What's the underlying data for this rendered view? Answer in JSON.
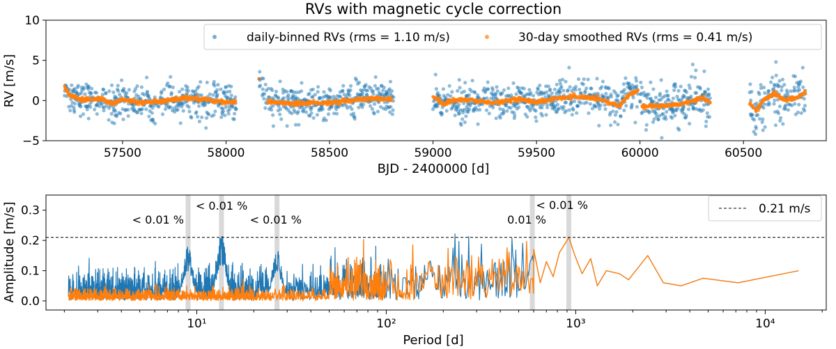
{
  "chart_data": [
    {
      "type": "scatter",
      "title": "RVs with magnetic cycle correction",
      "xlabel": "BJD - 2400000 [d]",
      "ylabel": "RV [m/s]",
      "xlim": [
        57130,
        60900
      ],
      "ylim": [
        -5,
        10
      ],
      "xticks": [
        57500,
        58000,
        58500,
        59000,
        59500,
        60000,
        60500
      ],
      "yticks": [
        -5,
        0,
        5,
        10
      ],
      "legend_position": "top-right",
      "series": [
        {
          "name": "daily-binned RVs (rms = 1.10 m/s)",
          "color": "#1f77b4",
          "observing_seasons": [
            [
              57220,
              58050
            ],
            [
              58160,
              58810
            ],
            [
              59000,
              59990
            ],
            [
              60000,
              60340
            ],
            [
              60530,
              60800
            ]
          ],
          "rms": 1.1
        },
        {
          "name": "30-day smoothed RVs (rms = 0.41 m/s)",
          "color": "#ff7f0e",
          "rms": 0.41,
          "trend": [
            [
              57220,
              1.7
            ],
            [
              57240,
              0.7
            ],
            [
              57300,
              0.1
            ],
            [
              57400,
              0.2
            ],
            [
              57450,
              -0.4
            ],
            [
              57500,
              0.1
            ],
            [
              57600,
              -0.3
            ],
            [
              57700,
              -0.1
            ],
            [
              57800,
              0.3
            ],
            [
              57900,
              0.1
            ],
            [
              58000,
              -0.2
            ],
            [
              58050,
              -0.1
            ],
            [
              58160,
              2.7
            ],
            [
              58200,
              -0.1
            ],
            [
              58300,
              -0.4
            ],
            [
              58400,
              -0.3
            ],
            [
              58500,
              -0.3
            ],
            [
              58600,
              0.0
            ],
            [
              58700,
              0.3
            ],
            [
              58800,
              0.1
            ],
            [
              59000,
              0.6
            ],
            [
              59050,
              -0.5
            ],
            [
              59100,
              0.1
            ],
            [
              59200,
              0.0
            ],
            [
              59300,
              -0.3
            ],
            [
              59400,
              0.2
            ],
            [
              59500,
              -0.2
            ],
            [
              59600,
              0.3
            ],
            [
              59700,
              0.5
            ],
            [
              59800,
              0.2
            ],
            [
              59900,
              -0.7
            ],
            [
              59950,
              0.8
            ],
            [
              59990,
              1.4
            ],
            [
              60010,
              -0.7
            ],
            [
              60100,
              -0.7
            ],
            [
              60200,
              -0.4
            ],
            [
              60300,
              0.3
            ],
            [
              60340,
              -0.3
            ],
            [
              60530,
              -0.3
            ],
            [
              60560,
              -1.2
            ],
            [
              60600,
              0.1
            ],
            [
              60650,
              0.9
            ],
            [
              60700,
              0.0
            ],
            [
              60750,
              0.3
            ],
            [
              60800,
              1.0
            ]
          ]
        }
      ]
    },
    {
      "type": "line",
      "xlabel": "Period [d]",
      "ylabel": "Amplitude [m/s]",
      "xscale": "log",
      "xlim": [
        1.6,
        21000
      ],
      "ylim": [
        -0.03,
        0.35
      ],
      "xticks": [
        10,
        100,
        1000,
        10000
      ],
      "xtick_labels": [
        "10¹",
        "10²",
        "10³",
        "10⁴"
      ],
      "yticks": [
        0.0,
        0.1,
        0.2,
        0.3
      ],
      "ytick_labels": [
        "0.0",
        "0.1",
        "0.2",
        "0.3"
      ],
      "legend_position": "top-right",
      "threshold": {
        "value": 0.21,
        "label": "0.21 m/s",
        "style": "dashed"
      },
      "highlighted_periods": [
        9.0,
        13.5,
        26.5,
        590,
        920
      ],
      "annotations": [
        {
          "text": "< 0.01 %",
          "period": 9.0
        },
        {
          "text": "< 0.01 %",
          "period": 13.5
        },
        {
          "text": "< 0.01 %",
          "period": 26.5
        },
        {
          "text": "0.01 %",
          "period": 590
        },
        {
          "text": "< 0.01 %",
          "period": 920
        }
      ],
      "peaks": [
        [
          9.0,
          0.18
        ],
        [
          13.5,
          0.22
        ],
        [
          26.5,
          0.17
        ],
        [
          170,
          0.15
        ],
        [
          590,
          0.17
        ],
        [
          920,
          0.21
        ],
        [
          2400,
          0.15
        ]
      ],
      "series": [
        {
          "color": "#1f77b4",
          "long_period_points": [
            [
              600,
              0.17
            ],
            [
              650,
              0.06
            ],
            [
              700,
              0.13
            ],
            [
              760,
              0.08
            ],
            [
              820,
              0.16
            ],
            [
              880,
              0.19
            ],
            [
              920,
              0.21
            ],
            [
              990,
              0.15
            ],
            [
              1080,
              0.09
            ],
            [
              1200,
              0.14
            ],
            [
              1300,
              0.05
            ],
            [
              1450,
              0.1
            ],
            [
              1700,
              0.09
            ],
            [
              1900,
              0.07
            ],
            [
              2400,
              0.15
            ],
            [
              2900,
              0.06
            ],
            [
              3600,
              0.05
            ],
            [
              4700,
              0.075
            ],
            [
              7200,
              0.06
            ],
            [
              15000,
              0.1
            ]
          ]
        },
        {
          "color": "#ff7f0e",
          "long_period_points": [
            [
              600,
              0.17
            ],
            [
              650,
              0.06
            ],
            [
              700,
              0.13
            ],
            [
              760,
              0.08
            ],
            [
              820,
              0.16
            ],
            [
              880,
              0.19
            ],
            [
              920,
              0.21
            ],
            [
              990,
              0.15
            ],
            [
              1080,
              0.09
            ],
            [
              1200,
              0.14
            ],
            [
              1300,
              0.05
            ],
            [
              1450,
              0.1
            ],
            [
              1700,
              0.09
            ],
            [
              1900,
              0.07
            ],
            [
              2400,
              0.15
            ],
            [
              2900,
              0.06
            ],
            [
              3600,
              0.05
            ],
            [
              4700,
              0.075
            ],
            [
              7200,
              0.06
            ],
            [
              15000,
              0.1
            ]
          ]
        }
      ]
    }
  ]
}
